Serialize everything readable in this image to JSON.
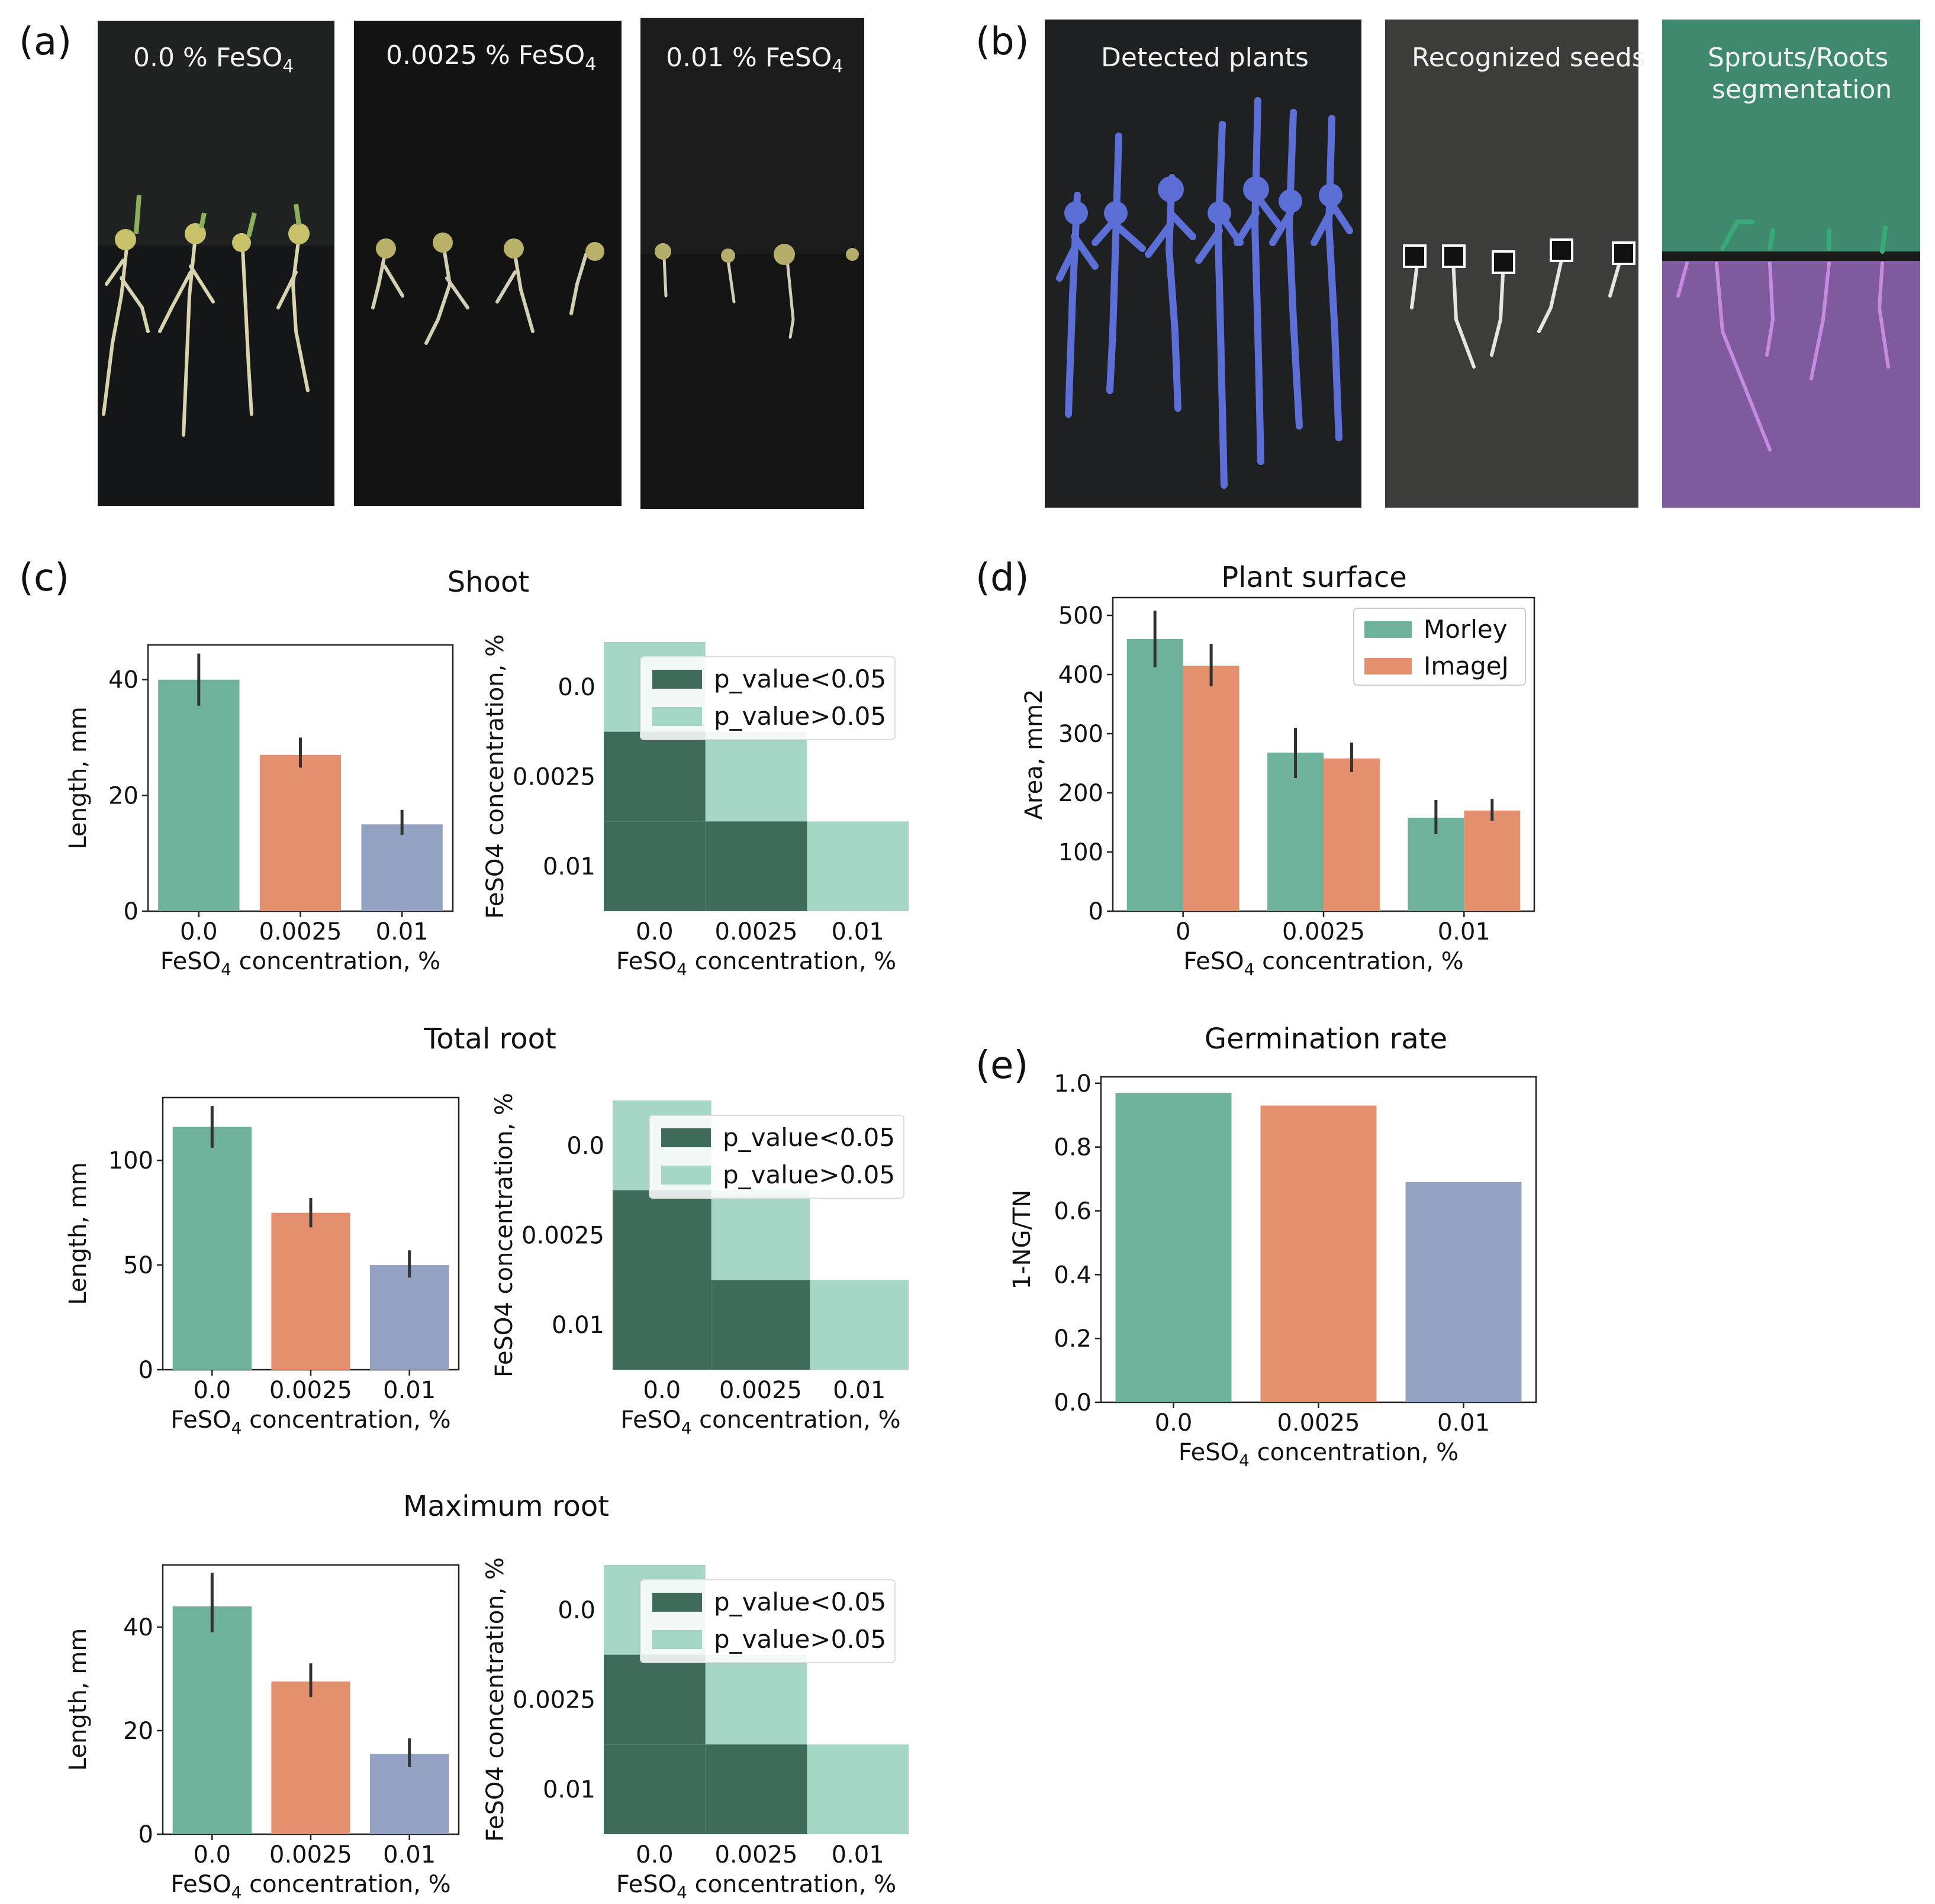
{
  "panel_labels": {
    "a": "(a)",
    "b": "(b)",
    "c": "(c)",
    "d": "(d)",
    "e": "(e)"
  },
  "colors": {
    "green": "#6fb29c",
    "orange": "#e4906f",
    "blue": "#93a2c3",
    "sig_dark": "#3f6b59",
    "sig_light": "#a6d6c5",
    "overlay_blue": "#5b6fd6",
    "overlay_green": "#3aa879",
    "overlay_purple": "#7f5b9e"
  },
  "photos": {
    "a": [
      {
        "label": "0.0 % FeSO",
        "sub": "4"
      },
      {
        "label": "0.0025 % FeSO",
        "sub": "4"
      },
      {
        "label": "0.01 % FeSO",
        "sub": "4"
      }
    ],
    "b": [
      {
        "label": "Detected plants",
        "label2": ""
      },
      {
        "label": "Recognized seeds",
        "label2": ""
      },
      {
        "label": "Sprouts/Roots",
        "label2": "segmentation"
      }
    ]
  },
  "c_xlabel": {
    "pre": "FeSO",
    "sub": "4",
    "post": " concentration, %"
  },
  "c_ylabel": "Length, mm",
  "c_heat_ylabel": "FeSO4 concentration, %",
  "legend_sig": {
    "dark": "p_value<0.05",
    "light": "p_value>0.05"
  },
  "chart_data": [
    {
      "id": "shoot",
      "type": "bar",
      "title": "Shoot",
      "categories": [
        "0.0",
        "0.0025",
        "0.01"
      ],
      "values": [
        40,
        27,
        15
      ],
      "errors_low": [
        35.5,
        24.8,
        13.2
      ],
      "errors_high": [
        44.5,
        30,
        17.5
      ],
      "ylabel": "Length, mm",
      "xlabel": "FeSO4 concentration, %",
      "ylim": [
        0,
        46
      ],
      "yticks": [
        "0",
        "20",
        "40"
      ],
      "ytick_values": [
        0,
        20,
        40
      ]
    },
    {
      "id": "shoot_sig",
      "type": "heatmap",
      "categories": [
        "0.0",
        "0.0025",
        "0.01"
      ],
      "cells": [
        [
          1,
          0
        ],
        [
          2,
          0
        ],
        [
          2,
          1
        ]
      ],
      "significance": [
        "p_value>0.05",
        "p_value<0.05",
        "p_value<0.05"
      ],
      "diag": [
        "p_value>0.05",
        "p_value>0.05",
        "p_value>0.05"
      ]
    },
    {
      "id": "total_root",
      "type": "bar",
      "title": "Total root",
      "categories": [
        "0.0",
        "0.0025",
        "0.01"
      ],
      "values": [
        116,
        75,
        50
      ],
      "errors_low": [
        106,
        68,
        44
      ],
      "errors_high": [
        126,
        82,
        57
      ],
      "ylabel": "Length, mm",
      "xlabel": "FeSO4 concentration, %",
      "ylim": [
        0,
        130
      ],
      "yticks": [
        "0",
        "50",
        "100"
      ],
      "ytick_values": [
        0,
        50,
        100
      ]
    },
    {
      "id": "total_root_sig",
      "type": "heatmap",
      "categories": [
        "0.0",
        "0.0025",
        "0.01"
      ],
      "cells": [
        [
          1,
          0
        ],
        [
          2,
          0
        ],
        [
          2,
          1
        ]
      ],
      "significance": [
        "p_value>0.05",
        "p_value<0.05",
        "p_value<0.05"
      ],
      "diag": [
        "p_value>0.05",
        "p_value>0.05",
        "p_value>0.05"
      ]
    },
    {
      "id": "max_root",
      "type": "bar",
      "title": "Maximum root",
      "categories": [
        "0.0",
        "0.0025",
        "0.01"
      ],
      "values": [
        44,
        29.5,
        15.5
      ],
      "errors_low": [
        39,
        26.5,
        13
      ],
      "errors_high": [
        50.5,
        33,
        18.5
      ],
      "ylabel": "Length, mm",
      "xlabel": "FeSO4 concentration, %",
      "ylim": [
        0,
        52
      ],
      "yticks": [
        "0",
        "20",
        "40"
      ],
      "ytick_values": [
        0,
        20,
        40
      ]
    },
    {
      "id": "max_root_sig",
      "type": "heatmap",
      "categories": [
        "0.0",
        "0.0025",
        "0.01"
      ],
      "cells": [
        [
          1,
          0
        ],
        [
          2,
          0
        ],
        [
          2,
          1
        ]
      ],
      "significance": [
        "p_value>0.05",
        "p_value<0.05",
        "p_value<0.05"
      ],
      "diag": [
        "p_value>0.05",
        "p_value>0.05",
        "p_value>0.05"
      ]
    },
    {
      "id": "plant_surface",
      "type": "bar",
      "title": "Plant surface",
      "categories": [
        "0",
        "0.0025",
        "0.01"
      ],
      "series": [
        {
          "name": "Morley",
          "values": [
            460,
            268,
            158
          ],
          "errors_low": [
            412,
            225,
            130
          ],
          "errors_high": [
            508,
            310,
            188
          ]
        },
        {
          "name": "ImageJ",
          "values": [
            415,
            258,
            170
          ],
          "errors_low": [
            380,
            235,
            152
          ],
          "errors_high": [
            452,
            285,
            190
          ]
        }
      ],
      "ylabel": "Area, mm2",
      "xlabel": "FeSO4 concentration, %",
      "ylim": [
        0,
        530
      ],
      "yticks": [
        "0",
        "100",
        "200",
        "300",
        "400",
        "500"
      ],
      "ytick_values": [
        0,
        100,
        200,
        300,
        400,
        500
      ],
      "legend": "top-right"
    },
    {
      "id": "germination",
      "type": "bar",
      "title": "Germination rate",
      "categories": [
        "0.0",
        "0.0025",
        "0.01"
      ],
      "values": [
        0.97,
        0.93,
        0.69
      ],
      "ylabel": "1-NG/TN",
      "xlabel": "FeSO4 concentration, %",
      "ylim": [
        0,
        1.02
      ],
      "yticks": [
        "0.0",
        "0.2",
        "0.4",
        "0.6",
        "0.8",
        "1.0"
      ],
      "ytick_values": [
        0,
        0.2,
        0.4,
        0.6,
        0.8,
        1.0
      ]
    }
  ]
}
